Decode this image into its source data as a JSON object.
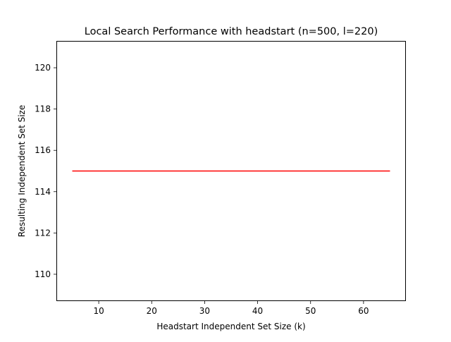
{
  "chart_data": {
    "type": "line",
    "title": "Local Search Performance with headstart (n=500, l=220)",
    "xlabel": "Headstart Independent Set Size (k)",
    "ylabel": "Resulting Independent Set Size",
    "xlim": [
      2,
      68
    ],
    "ylim": [
      108.7,
      121.3
    ],
    "xticks": [
      10,
      20,
      30,
      40,
      50,
      60
    ],
    "yticks": [
      110,
      112,
      114,
      116,
      118,
      120
    ],
    "grid": false,
    "series": [
      {
        "color": "#ff0000",
        "x": [
          5,
          65
        ],
        "y": [
          115,
          115
        ]
      }
    ]
  }
}
